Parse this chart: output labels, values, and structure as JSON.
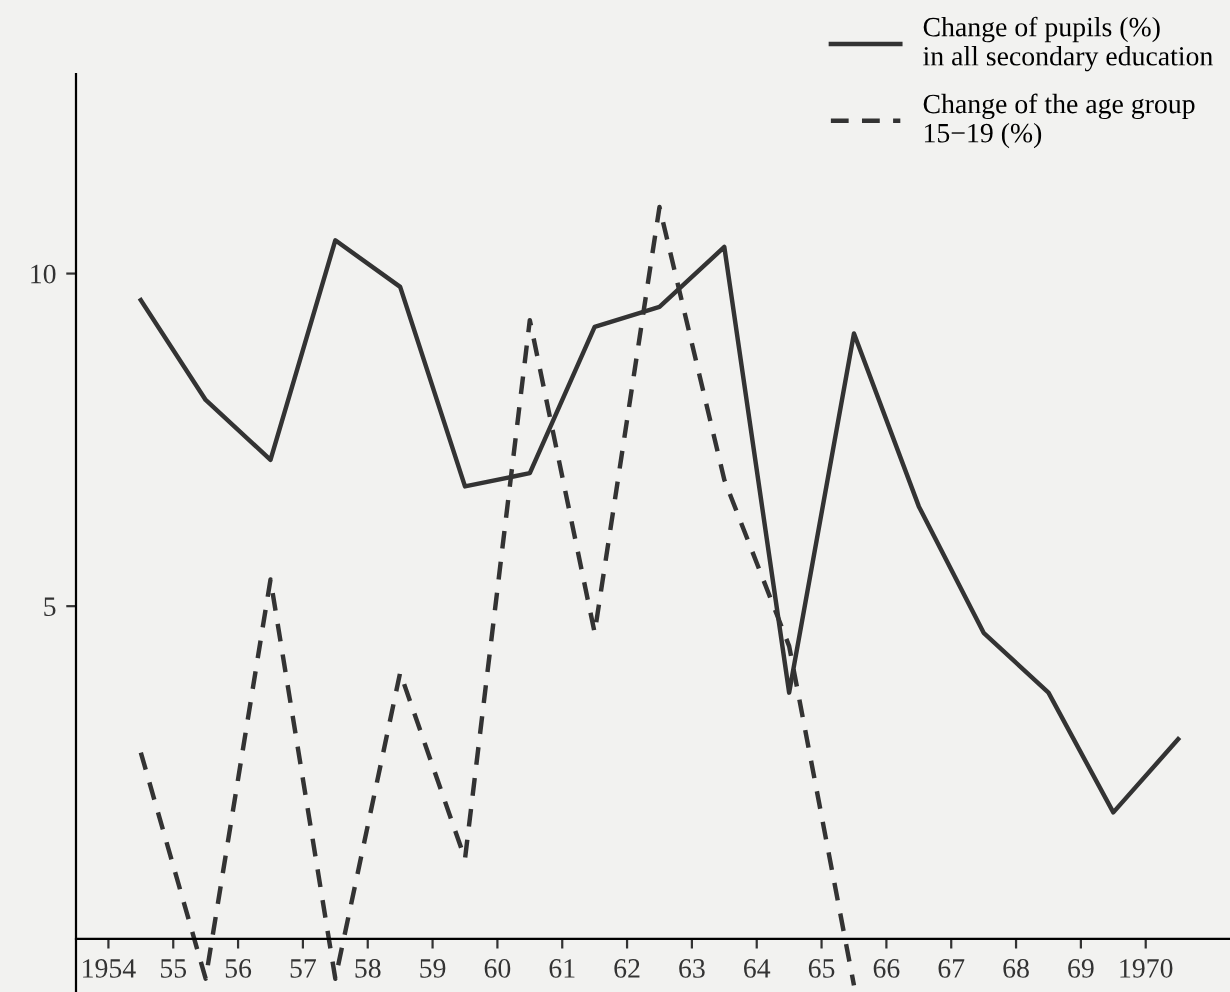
{
  "chart_data": {
    "type": "line",
    "x": [
      1954.5,
      1955.5,
      1956.5,
      1957.5,
      1958.5,
      1959.5,
      1960.5,
      1961.5,
      1962.5,
      1963.5,
      1964.5,
      1965.5,
      1966.5,
      1967.5,
      1968.5,
      1969.5,
      1970.5
    ],
    "series": [
      {
        "name": "Change of pupils (%)\nin all secondary education",
        "color": "#333333",
        "line_style": "solid",
        "values": [
          9.6,
          8.1,
          7.2,
          10.5,
          9.8,
          6.8,
          7.0,
          9.2,
          9.5,
          10.4,
          3.7,
          9.1,
          6.5,
          4.6,
          3.7,
          1.9,
          3.0
        ]
      },
      {
        "name": "Change of the age group\n15−19 (%)",
        "color": "#333333",
        "line_style": "dashed",
        "values": [
          2.8,
          -0.6,
          5.4,
          -0.6,
          4.0,
          1.2,
          9.3,
          4.6,
          11.0,
          6.9,
          4.4,
          -0.7,
          null,
          null,
          null,
          null,
          null
        ]
      }
    ],
    "xlim": [
      1953.5,
      1971.3
    ],
    "ylim": [
      -0.8,
      13
    ],
    "xticks": [
      {
        "value": 1954,
        "label": "1954"
      },
      {
        "value": 1955,
        "label": "55"
      },
      {
        "value": 1956,
        "label": "56"
      },
      {
        "value": 1957,
        "label": "57"
      },
      {
        "value": 1958,
        "label": "58"
      },
      {
        "value": 1959,
        "label": "59"
      },
      {
        "value": 1960,
        "label": "60"
      },
      {
        "value": 1961,
        "label": "61"
      },
      {
        "value": 1962,
        "label": "62"
      },
      {
        "value": 1963,
        "label": "63"
      },
      {
        "value": 1964,
        "label": "64"
      },
      {
        "value": 1965,
        "label": "65"
      },
      {
        "value": 1966,
        "label": "66"
      },
      {
        "value": 1967,
        "label": "67"
      },
      {
        "value": 1968,
        "label": "68"
      },
      {
        "value": 1969,
        "label": "69"
      },
      {
        "value": 1970,
        "label": "1970"
      }
    ],
    "yticks": [
      5,
      10
    ],
    "grid": false,
    "legend": "top right",
    "marker": "none"
  }
}
